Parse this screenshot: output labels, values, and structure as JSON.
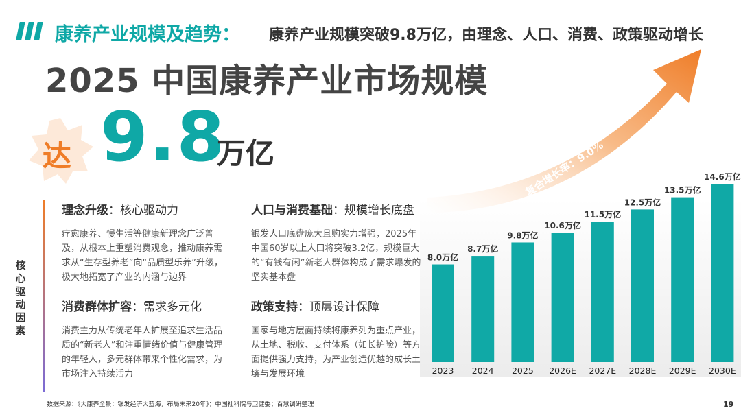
{
  "header": {
    "title": "康养产业规模及趋势：",
    "subtitle": "康养产业规模突破9.8万亿，由理念、人口、消费、政策驱动增长"
  },
  "main_title": "2025 中国康养产业市场规模",
  "highlight": {
    "prefix": "达",
    "value": "9.8",
    "unit": "万亿"
  },
  "side_label": "核心驱动因素",
  "cards": [
    {
      "key": "理念升级",
      "rest": "：核心驱动力",
      "text": "疗愈康养、慢生活等健康新理念广泛普及，从根本上重塑消费观念，推动康养需求从“生存型养老”向“品质型乐养”升级，极大地拓宽了产业的内涵与边界"
    },
    {
      "key": "人口与消费基础",
      "rest": "：规模增长底盘",
      "text": "银发人口底盘庞大且购实力增强，2025年中国60岁以上人口将突破3.2亿，规模巨大的“有钱有闲”新老人群体构成了需求爆发的坚实基本盘"
    },
    {
      "key": "消费群体扩容",
      "rest": "：需求多元化",
      "text": "消费主力从传统老年人扩展至追求生活品质的“新老人”和注重情绪价值与健康管理的年轻人，多元群体带来个性化需求，为市场注入持续活力"
    },
    {
      "key": "政策支持",
      "rest": "：顶层设计保障",
      "text": "国家与地方层面持续将康养列为重点产业，从土地、税收、支付体系（如长护险）等方面提供强力支持，为产业创造优越的成长土壤与发展环境"
    }
  ],
  "chart_data": {
    "type": "bar",
    "categories": [
      "2023",
      "2024",
      "2025",
      "2026E",
      "2027E",
      "2028E",
      "2029E",
      "2030E"
    ],
    "values": [
      8.0,
      8.7,
      9.8,
      10.6,
      11.5,
      12.5,
      13.5,
      14.6
    ],
    "data_labels": [
      "8.0万亿",
      "8.7万亿",
      "9.8万亿",
      "10.6万亿",
      "11.5万亿",
      "12.5万亿",
      "13.5万亿",
      "14.6万亿"
    ],
    "unit": "万亿",
    "annotation": "复合增长率：9.0%",
    "bar_color": "#10a9a6",
    "arrow_color": "#ef7d28",
    "grid": false
  },
  "footnote": "数据来源：《大康养全景：银发经济大蓝海，布局未来20年》；中国社科院与卫健委；百慧调研整理",
  "page_number": "19"
}
